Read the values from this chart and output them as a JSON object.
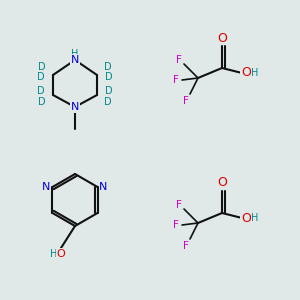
{
  "bg_color": "#e0e8e8",
  "atom_colors": {
    "N": "#0000dd",
    "O": "#dd0000",
    "F": "#cc00cc",
    "D": "#008888",
    "H": "#008888",
    "bond": "#111111"
  },
  "fig_w": 3.0,
  "fig_h": 3.0,
  "dpi": 100
}
